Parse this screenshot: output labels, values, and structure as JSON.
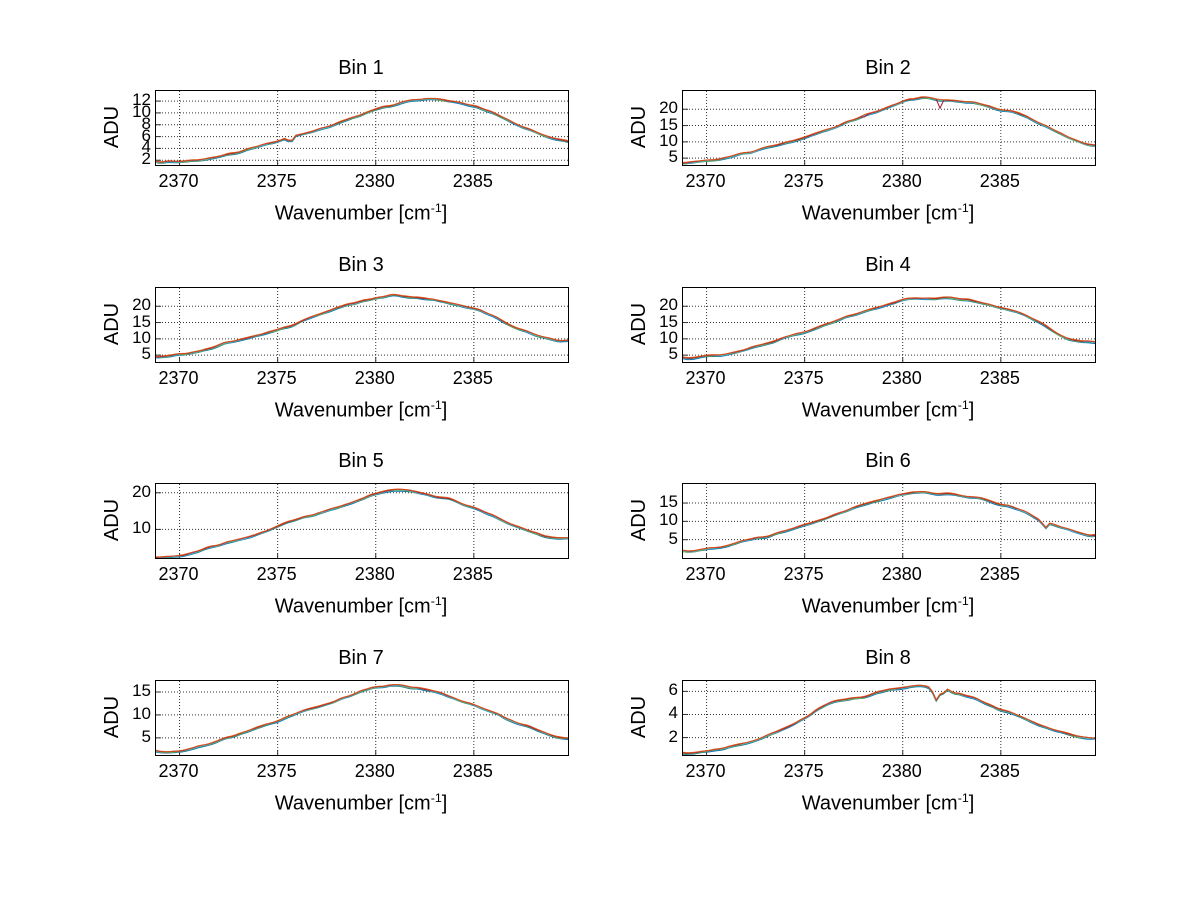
{
  "page": {
    "background": "#ffffff"
  },
  "labels": {
    "ylabel": "ADU",
    "xlabel_pre": "Wavenumber [cm",
    "xlabel_sup": "-1",
    "xlabel_post": "]"
  },
  "axes": {
    "xlim": [
      2368.8,
      2389.8
    ],
    "xticks": [
      2370,
      2375,
      2380,
      2385
    ],
    "grid_style": "dotted",
    "grid_color": "#333333",
    "box": true
  },
  "series": [
    {
      "name": "trace-blue",
      "color": "#0072BD",
      "offset_frac": -0.011
    },
    {
      "name": "trace-green",
      "color": "#77AC30",
      "offset_frac": -0.004
    },
    {
      "name": "trace-cyan",
      "color": "#4DBEEE",
      "offset_frac": 0.002
    },
    {
      "name": "trace-darkred",
      "color": "#A2142F",
      "offset_frac": 0.007
    },
    {
      "name": "trace-orange",
      "color": "#D95319",
      "offset_frac": 0.012
    }
  ],
  "chart_data": [
    {
      "type": "line",
      "title": "Bin 1",
      "xlabel": "Wavenumber [cm^-1]",
      "ylabel": "ADU",
      "xlim": [
        2368.8,
        2389.8
      ],
      "ylim": [
        1.2,
        13.7
      ],
      "xticks": [
        2370,
        2375,
        2380,
        2385
      ],
      "yticks": [
        2,
        4,
        6,
        8,
        10,
        12
      ],
      "x": [
        2369,
        2370,
        2371,
        2372,
        2373,
        2374,
        2375,
        2376,
        2377,
        2378,
        2379,
        2380,
        2381,
        2382,
        2383,
        2384,
        2385,
        2386,
        2387,
        2388,
        2389,
        2390
      ],
      "adu": [
        1.6,
        1.8,
        2.1,
        2.7,
        3.5,
        4.3,
        5.1,
        6.2,
        7.1,
        8.2,
        9.4,
        10.5,
        11.4,
        12.1,
        12.4,
        12.0,
        11.1,
        9.9,
        8.4,
        6.9,
        5.6,
        4.7
      ],
      "features": [
        {
          "x": 2375.65,
          "dy": -1.1,
          "w": 0.12
        }
      ]
    },
    {
      "type": "line",
      "title": "Bin 2",
      "xlabel": "Wavenumber [cm^-1]",
      "ylabel": "ADU",
      "xlim": [
        2368.8,
        2389.8
      ],
      "ylim": [
        2.9,
        25.6
      ],
      "xticks": [
        2370,
        2375,
        2380,
        2385
      ],
      "yticks": [
        5,
        10,
        15,
        20
      ],
      "x": [
        2369,
        2370,
        2371,
        2372,
        2373,
        2374,
        2375,
        2376,
        2377,
        2378,
        2379,
        2380,
        2381,
        2382,
        2383,
        2384,
        2385,
        2386,
        2387,
        2388,
        2389,
        2390
      ],
      "adu": [
        3.6,
        4.2,
        5.2,
        6.6,
        8.2,
        9.8,
        11.3,
        13.3,
        15.5,
        17.9,
        20.1,
        22.1,
        23.2,
        22.8,
        22.4,
        21.5,
        19.8,
        18.4,
        15.7,
        12.9,
        10.1,
        8.4
      ],
      "features": [
        {
          "x": 2381.9,
          "dy": -2.6,
          "w": 0.07,
          "series": 3
        },
        {
          "x": 2378.1,
          "dy": -1.1,
          "w": 0.06,
          "series": 3
        }
      ]
    },
    {
      "type": "line",
      "title": "Bin 3",
      "xlabel": "Wavenumber [cm^-1]",
      "ylabel": "ADU",
      "xlim": [
        2368.8,
        2389.8
      ],
      "ylim": [
        2.9,
        25.6
      ],
      "xticks": [
        2370,
        2375,
        2380,
        2385
      ],
      "yticks": [
        5,
        10,
        15,
        20
      ],
      "x": [
        2369,
        2370,
        2371,
        2372,
        2373,
        2374,
        2375,
        2376,
        2377,
        2378,
        2379,
        2380,
        2381,
        2382,
        2383,
        2384,
        2385,
        2386,
        2387,
        2388,
        2389,
        2390
      ],
      "adu": [
        4.4,
        5.0,
        6.2,
        7.8,
        9.6,
        11.1,
        12.9,
        14.9,
        17.2,
        19.4,
        21.0,
        22.5,
        23.4,
        22.6,
        22.0,
        20.7,
        19.3,
        17.0,
        14.1,
        11.5,
        9.7,
        9.2
      ],
      "features": []
    },
    {
      "type": "line",
      "title": "Bin 4",
      "xlabel": "Wavenumber [cm^-1]",
      "ylabel": "ADU",
      "xlim": [
        2368.8,
        2389.8
      ],
      "ylim": [
        2.9,
        25.6
      ],
      "xticks": [
        2370,
        2375,
        2380,
        2385
      ],
      "yticks": [
        5,
        10,
        15,
        20
      ],
      "x": [
        2369,
        2370,
        2371,
        2372,
        2373,
        2374,
        2375,
        2376,
        2377,
        2378,
        2379,
        2380,
        2381,
        2382,
        2383,
        2384,
        2385,
        2386,
        2387,
        2388,
        2389,
        2390
      ],
      "adu": [
        3.8,
        4.4,
        5.4,
        6.8,
        8.6,
        10.4,
        12.0,
        14.2,
        16.4,
        18.2,
        19.7,
        21.8,
        22.4,
        22.6,
        22.2,
        21.2,
        19.6,
        17.9,
        14.6,
        11.3,
        9.3,
        8.6
      ],
      "features": []
    },
    {
      "type": "line",
      "title": "Bin 5",
      "xlabel": "Wavenumber [cm^-1]",
      "ylabel": "ADU",
      "xlim": [
        2368.8,
        2389.8
      ],
      "ylim": [
        2.2,
        22.4
      ],
      "xticks": [
        2370,
        2375,
        2380,
        2385
      ],
      "yticks": [
        10,
        20
      ],
      "x": [
        2369,
        2370,
        2371,
        2372,
        2373,
        2374,
        2375,
        2376,
        2377,
        2378,
        2379,
        2380,
        2381,
        2382,
        2383,
        2384,
        2385,
        2386,
        2387,
        2388,
        2389,
        2390
      ],
      "adu": [
        2.4,
        3.0,
        4.2,
        5.6,
        7.2,
        8.8,
        10.8,
        12.6,
        14.2,
        15.9,
        17.7,
        19.9,
        20.7,
        20.2,
        19.2,
        18.0,
        16.0,
        13.7,
        11.2,
        9.1,
        7.7,
        7.2
      ],
      "features": []
    },
    {
      "type": "line",
      "title": "Bin 6",
      "xlabel": "Wavenumber [cm^-1]",
      "ylabel": "ADU",
      "xlim": [
        2368.8,
        2389.8
      ],
      "ylim": [
        0,
        20.2
      ],
      "xticks": [
        2370,
        2375,
        2380,
        2385
      ],
      "yticks": [
        5,
        10,
        15
      ],
      "x": [
        2369,
        2370,
        2371,
        2372,
        2373,
        2374,
        2375,
        2376,
        2377,
        2378,
        2379,
        2380,
        2381,
        2382,
        2383,
        2384,
        2385,
        2386,
        2387,
        2388,
        2389,
        2390
      ],
      "adu": [
        1.6,
        2.2,
        3.2,
        4.6,
        6.0,
        7.4,
        8.9,
        10.7,
        12.5,
        14.4,
        15.7,
        17.1,
        17.9,
        17.4,
        16.7,
        16.0,
        14.6,
        13.2,
        10.5,
        8.6,
        6.7,
        5.8
      ],
      "features": [
        {
          "x": 2387.25,
          "dy": -1.7,
          "w": 0.15
        }
      ]
    },
    {
      "type": "line",
      "title": "Bin 7",
      "xlabel": "Wavenumber [cm^-1]",
      "ylabel": "ADU",
      "xlim": [
        2368.8,
        2389.8
      ],
      "ylim": [
        1.26,
        17.4
      ],
      "xticks": [
        2370,
        2375,
        2380,
        2385
      ],
      "yticks": [
        5,
        10,
        15
      ],
      "x": [
        2369,
        2370,
        2371,
        2372,
        2373,
        2374,
        2375,
        2376,
        2377,
        2378,
        2379,
        2380,
        2381,
        2382,
        2383,
        2384,
        2385,
        2386,
        2387,
        2388,
        2389,
        2390
      ],
      "adu": [
        1.8,
        2.2,
        3.0,
        4.2,
        5.6,
        7.0,
        8.6,
        10.2,
        11.6,
        13.1,
        14.7,
        15.9,
        16.1,
        15.7,
        14.7,
        13.6,
        12.0,
        10.4,
        8.6,
        7.0,
        5.5,
        4.8
      ],
      "features": []
    },
    {
      "type": "line",
      "title": "Bin 8",
      "xlabel": "Wavenumber [cm^-1]",
      "ylabel": "ADU",
      "xlim": [
        2368.8,
        2389.8
      ],
      "ylim": [
        0.49,
        6.9
      ],
      "xticks": [
        2370,
        2375,
        2380,
        2385
      ],
      "yticks": [
        2,
        4,
        6
      ],
      "x": [
        2369,
        2370,
        2371,
        2372,
        2373,
        2374,
        2375,
        2376,
        2377,
        2378,
        2379,
        2380,
        2381,
        2382,
        2383,
        2384,
        2385,
        2386,
        2387,
        2388,
        2389,
        2390
      ],
      "adu": [
        0.6,
        0.8,
        1.1,
        1.5,
        2.1,
        2.8,
        3.6,
        4.7,
        5.2,
        5.5,
        6.0,
        6.4,
        6.5,
        5.9,
        5.7,
        5.2,
        4.4,
        3.8,
        3.1,
        2.5,
        2.0,
        1.8
      ],
      "features": [
        {
          "x": 2381.7,
          "dy": -0.9,
          "w": 0.18
        },
        {
          "x": 2382.35,
          "dy": 0.45,
          "w": 0.12
        }
      ]
    }
  ]
}
